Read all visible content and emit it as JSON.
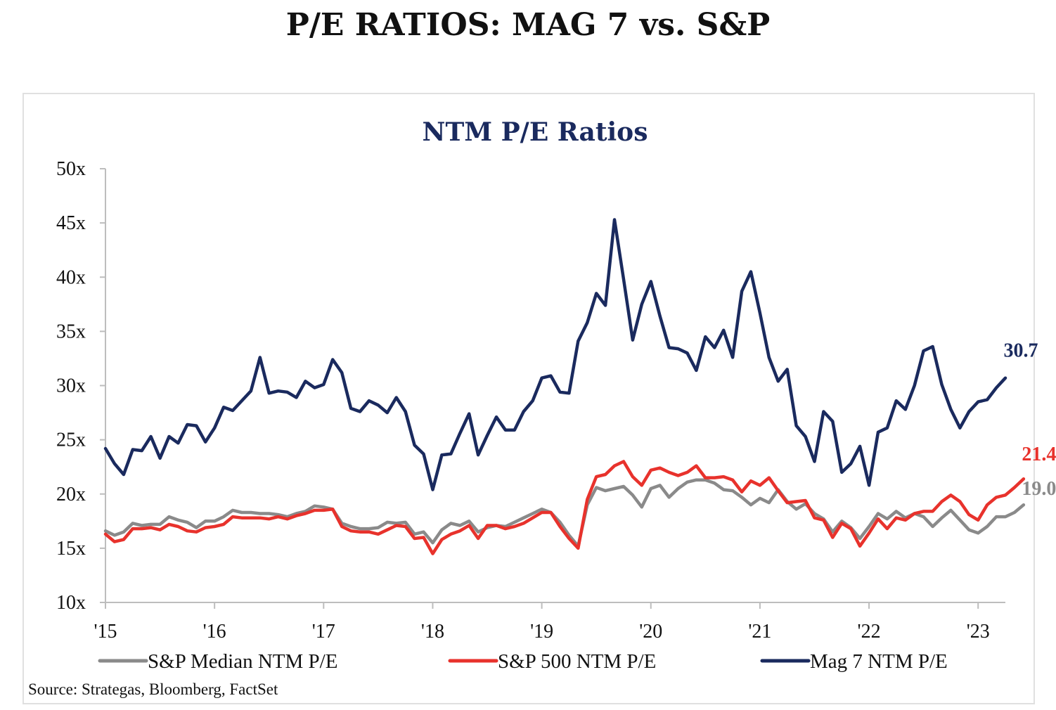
{
  "page": {
    "title": "P/E RATIOS: MAG 7 vs. S&P"
  },
  "source": "Source: Strategas, Bloomberg, FactSet",
  "chart_data": {
    "type": "line",
    "title": "NTM P/E Ratios",
    "xlabel": "",
    "ylabel": "",
    "x_start_year": 2015,
    "months_per_point": 1,
    "x_ticks": [
      {
        "label": "'15",
        "year": 2015
      },
      {
        "label": "'16",
        "year": 2016
      },
      {
        "label": "'17",
        "year": 2017
      },
      {
        "label": "'18",
        "year": 2018
      },
      {
        "label": "'19",
        "year": 2019
      },
      {
        "label": "'20",
        "year": 2020
      },
      {
        "label": "'21",
        "year": 2021
      },
      {
        "label": "'22",
        "year": 2022
      },
      {
        "label": "'23",
        "year": 2023
      }
    ],
    "y_ticks": [
      {
        "label": "10x",
        "value": 10
      },
      {
        "label": "15x",
        "value": 15
      },
      {
        "label": "20x",
        "value": 20
      },
      {
        "label": "25x",
        "value": 25
      },
      {
        "label": "30x",
        "value": 30
      },
      {
        "label": "35x",
        "value": 35
      },
      {
        "label": "40x",
        "value": 40
      },
      {
        "label": "45x",
        "value": 45
      },
      {
        "label": "50x",
        "value": 50
      }
    ],
    "ylim": [
      10,
      50
    ],
    "grid": false,
    "legend_position": "bottom",
    "series": [
      {
        "name": "S&P Median NTM P/E",
        "color": "#8a8a8a",
        "end_label": "19.0",
        "values": [
          16.6,
          16.2,
          16.5,
          17.3,
          17.1,
          17.2,
          17.2,
          17.9,
          17.6,
          17.4,
          16.9,
          17.5,
          17.5,
          17.9,
          18.5,
          18.3,
          18.3,
          18.2,
          18.2,
          18.1,
          17.9,
          18.2,
          18.4,
          18.9,
          18.8,
          18.6,
          17.3,
          17.0,
          16.8,
          16.8,
          16.9,
          17.4,
          17.3,
          17.4,
          16.3,
          16.5,
          15.5,
          16.7,
          17.3,
          17.1,
          17.5,
          16.5,
          16.9,
          17.1,
          17.0,
          17.4,
          17.8,
          18.2,
          18.6,
          18.3,
          17.4,
          16.2,
          15.2,
          19.0,
          20.6,
          20.3,
          20.5,
          20.7,
          19.9,
          18.8,
          20.5,
          20.8,
          19.7,
          20.5,
          21.1,
          21.3,
          21.3,
          21.0,
          20.4,
          20.3,
          19.7,
          19.0,
          19.6,
          19.2,
          20.4,
          19.3,
          18.6,
          19.1,
          18.2,
          17.7,
          16.5,
          17.5,
          16.9,
          15.9,
          17.0,
          18.2,
          17.7,
          18.4,
          17.8,
          18.2,
          17.9,
          17.0,
          17.8,
          18.5,
          17.6,
          16.7,
          16.4,
          17.0,
          17.9,
          17.9,
          18.3,
          19.0
        ]
      },
      {
        "name": "S&P 500 NTM P/E",
        "color": "#e8322c",
        "end_label": "21.4",
        "values": [
          16.3,
          15.6,
          15.8,
          16.8,
          16.8,
          16.9,
          16.7,
          17.2,
          17.0,
          16.6,
          16.5,
          16.9,
          17.0,
          17.2,
          17.9,
          17.8,
          17.8,
          17.8,
          17.7,
          17.9,
          17.7,
          18.0,
          18.2,
          18.5,
          18.5,
          18.6,
          17.0,
          16.6,
          16.5,
          16.5,
          16.3,
          16.7,
          17.1,
          17.0,
          15.9,
          16.0,
          14.5,
          15.8,
          16.3,
          16.6,
          17.1,
          15.9,
          17.1,
          17.1,
          16.8,
          17.0,
          17.3,
          17.8,
          18.3,
          18.3,
          17.0,
          15.9,
          15.0,
          19.5,
          21.6,
          21.8,
          22.6,
          23.0,
          21.6,
          20.8,
          22.2,
          22.4,
          22.0,
          21.7,
          22.0,
          22.6,
          21.5,
          21.5,
          21.6,
          21.3,
          20.2,
          21.2,
          20.8,
          21.5,
          20.3,
          19.2,
          19.3,
          19.4,
          17.8,
          17.6,
          16.0,
          17.3,
          16.8,
          15.2,
          16.4,
          17.7,
          16.8,
          17.8,
          17.6,
          18.2,
          18.4,
          18.4,
          19.3,
          19.9,
          19.3,
          18.1,
          17.6,
          19.0,
          19.7,
          19.9,
          20.6,
          21.4
        ]
      },
      {
        "name": "Mag 7 NTM P/E",
        "color": "#1a2a5e",
        "end_label": "30.7",
        "values": [
          24.2,
          22.8,
          21.8,
          24.1,
          24.0,
          25.3,
          23.3,
          25.3,
          24.7,
          26.4,
          26.3,
          24.8,
          26.1,
          28.0,
          27.7,
          28.6,
          29.5,
          32.6,
          29.3,
          29.5,
          29.4,
          28.9,
          30.4,
          29.8,
          30.1,
          32.4,
          31.2,
          27.9,
          27.6,
          28.6,
          28.2,
          27.5,
          28.9,
          27.6,
          24.5,
          23.7,
          20.4,
          23.6,
          23.7,
          25.6,
          27.4,
          23.6,
          25.4,
          27.1,
          25.9,
          25.9,
          27.6,
          28.6,
          30.7,
          30.9,
          29.4,
          29.3,
          34.1,
          35.8,
          38.5,
          37.4,
          45.3,
          39.8,
          34.2,
          37.5,
          39.6,
          36.4,
          33.5,
          33.4,
          33.0,
          31.4,
          34.5,
          33.5,
          35.1,
          32.6,
          38.7,
          40.5,
          36.7,
          32.6,
          30.4,
          31.5,
          26.3,
          25.3,
          23.0,
          27.6,
          26.7,
          22.0,
          22.8,
          24.4,
          20.8,
          25.7,
          26.1,
          28.6,
          27.8,
          30.0,
          33.2,
          33.6,
          30.1,
          27.8,
          26.1,
          27.6,
          28.5,
          28.7,
          29.8,
          30.7
        ]
      }
    ]
  }
}
